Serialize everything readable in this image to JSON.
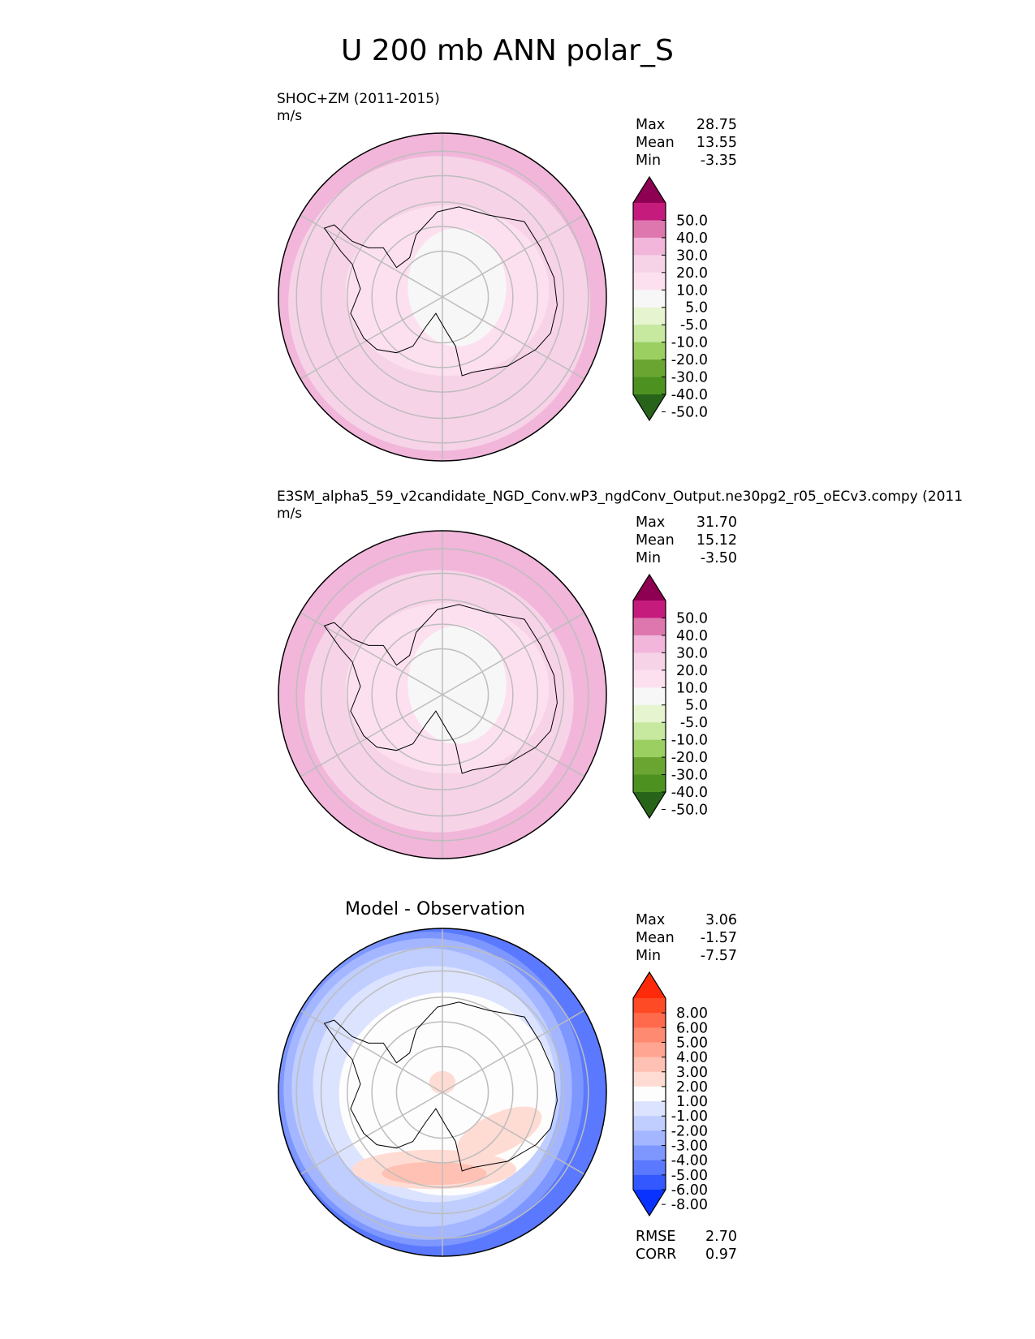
{
  "title": "U 200 mb ANN polar_S",
  "panels": [
    {
      "heading": "SHOC+ZM (2011-2015)",
      "units": "m/s",
      "stats": [
        {
          "label": "Max",
          "value": "28.75"
        },
        {
          "label": "Mean",
          "value": "13.55"
        },
        {
          "label": "Min",
          "value": "-3.35"
        }
      ],
      "colorbar": {
        "labels": [
          "50.0",
          "40.0",
          "30.0",
          "20.0",
          "10.0",
          "5.0",
          "-5.0",
          "-10.0",
          "-20.0",
          "-30.0",
          "-40.0",
          "-50.0"
        ],
        "colors": [
          "#8e0152",
          "#c51b7d",
          "#de77ae",
          "#f1b6da",
          "#f7d3e8",
          "#fde0ef",
          "#f7f7f7",
          "#e6f5d0",
          "#c7e89f",
          "#9bcf62",
          "#6aa532",
          "#4d9221",
          "#276419"
        ]
      }
    },
    {
      "heading": "E3SM_alpha5_59_v2candidate_NGD_Conv.wP3_ngdConv_Output.ne30pg2_r05_oECv3.compy (2011",
      "units": "m/s",
      "stats": [
        {
          "label": "Max",
          "value": "31.70"
        },
        {
          "label": "Mean",
          "value": "15.12"
        },
        {
          "label": "Min",
          "value": "-3.50"
        }
      ],
      "colorbar": {
        "labels": [
          "50.0",
          "40.0",
          "30.0",
          "20.0",
          "10.0",
          "5.0",
          "-5.0",
          "-10.0",
          "-20.0",
          "-30.0",
          "-40.0",
          "-50.0"
        ],
        "colors": [
          "#8e0152",
          "#c51b7d",
          "#de77ae",
          "#f1b6da",
          "#f7d3e8",
          "#fde0ef",
          "#f7f7f7",
          "#e6f5d0",
          "#c7e89f",
          "#9bcf62",
          "#6aa532",
          "#4d9221",
          "#276419"
        ]
      }
    },
    {
      "heading": "Model - Observation",
      "units": "",
      "stats": [
        {
          "label": "Max",
          "value": "3.06"
        },
        {
          "label": "Mean",
          "value": "-1.57"
        },
        {
          "label": "Min",
          "value": "-7.57"
        }
      ],
      "extra_stats": [
        {
          "label": "RMSE",
          "value": "2.70"
        },
        {
          "label": "CORR",
          "value": "0.97"
        }
      ],
      "colorbar": {
        "labels": [
          "8.00",
          "6.00",
          "5.00",
          "4.00",
          "3.00",
          "2.00",
          "1.00",
          "-1.00",
          "-2.00",
          "-3.00",
          "-4.00",
          "-5.00",
          "-6.00",
          "-8.00"
        ],
        "colors": [
          "#ff2a0a",
          "#ff4a26",
          "#ff6a4c",
          "#ff8a72",
          "#ffa592",
          "#ffc1b3",
          "#ffdcd3",
          "#fdfdfd",
          "#dce3ff",
          "#bfcdff",
          "#a3b6ff",
          "#7d97ff",
          "#5a79ff",
          "#3458ff",
          "#0a32ff"
        ]
      }
    }
  ],
  "chart_data": [
    {
      "type": "heatmap",
      "title": "SHOC+ZM (2011-2015)",
      "projection": "south polar stereographic",
      "units": "m/s",
      "stats": {
        "max": 28.75,
        "mean": 13.55,
        "min": -3.35
      },
      "contour_levels": [
        -50,
        -40,
        -30,
        -20,
        -10,
        -5,
        5,
        10,
        20,
        30,
        40,
        50
      ],
      "fill_regions": [
        {
          "band": "-5 to 5",
          "description": "pole"
        },
        {
          "band": "5 to 10",
          "description": "interior Antarctica"
        },
        {
          "band": "10 to 20",
          "description": "middle ring"
        },
        {
          "band": "20 to 30",
          "description": "outer ring"
        }
      ]
    },
    {
      "type": "heatmap",
      "title": "E3SM_alpha5_59_v2candidate_NGD_Conv.wP3_ngdConv_Output.ne30pg2_r05_oECv3.compy (2011",
      "projection": "south polar stereographic",
      "units": "m/s",
      "stats": {
        "max": 31.7,
        "mean": 15.12,
        "min": -3.5
      },
      "contour_levels": [
        -50,
        -40,
        -30,
        -20,
        -10,
        -5,
        5,
        10,
        20,
        30,
        40,
        50
      ],
      "fill_regions": [
        {
          "band": "-5 to 5",
          "description": "pole"
        },
        {
          "band": "5 to 10",
          "description": "interior Antarctica"
        },
        {
          "band": "10 to 20",
          "description": "middle ring"
        },
        {
          "band": "20 to 30",
          "description": "outer ring"
        }
      ]
    },
    {
      "type": "heatmap",
      "title": "Model - Observation",
      "projection": "south polar stereographic",
      "stats": {
        "max": 3.06,
        "mean": -1.57,
        "min": -7.57,
        "rmse": 2.7,
        "corr": 0.97
      },
      "contour_levels": [
        -8,
        -6,
        -5,
        -4,
        -3,
        -2,
        -1,
        1,
        2,
        3,
        4,
        5,
        6,
        8
      ],
      "fill_regions": [
        {
          "band": "-1 to 1",
          "description": "interior"
        },
        {
          "band": "1 to 2",
          "description": "patch near pole and lower-left interior"
        },
        {
          "band": "-3 to -1",
          "description": "middle ring"
        },
        {
          "band": "-8 to -3",
          "description": "outer edge, strongest on the right"
        }
      ]
    }
  ]
}
